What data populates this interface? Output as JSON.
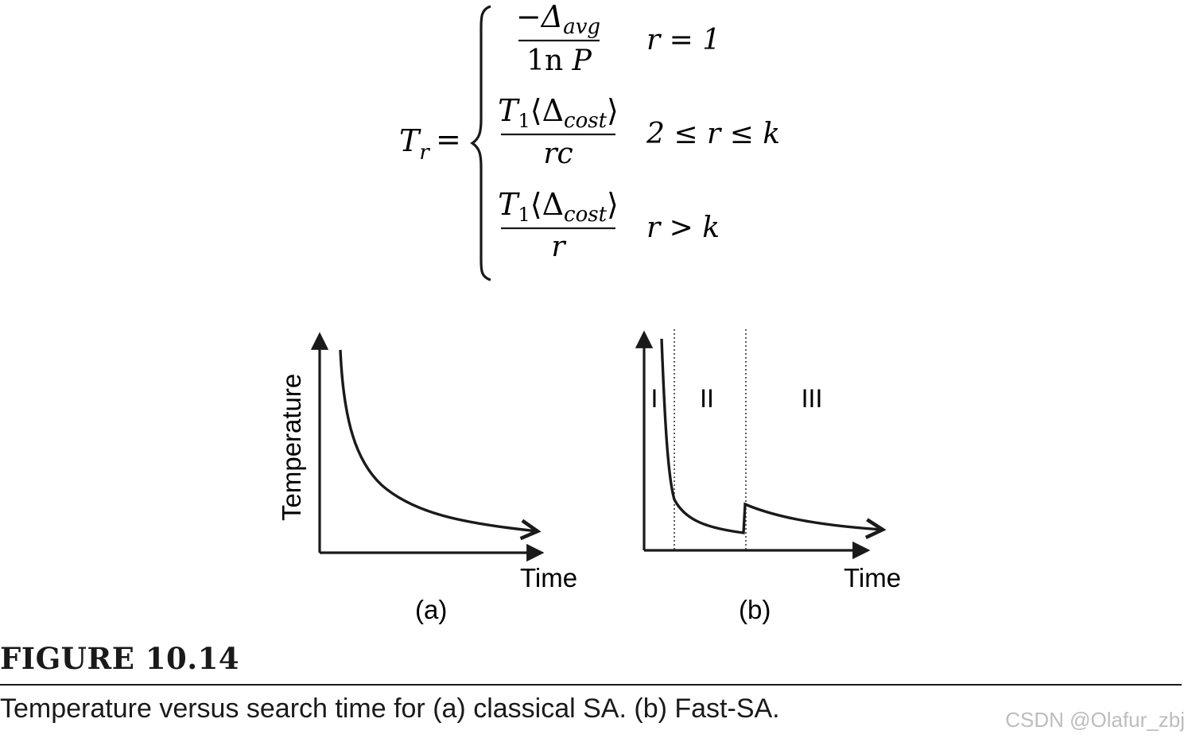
{
  "equation": {
    "lhs": "T",
    "lhs_sub": "r",
    "equals": "=",
    "cases": [
      {
        "num_main": "−Δ",
        "num_sub": "avg",
        "num_tail": "",
        "den_main": "1n ",
        "den_tail": "P",
        "condition": "r = 1"
      },
      {
        "num_main": "T",
        "num_sub1": "1",
        "num_mid": "⟨Δ",
        "num_sub": "cost",
        "num_tail": "⟩",
        "den": "rc",
        "condition": "2 ≤ r ≤ k"
      },
      {
        "num_main": "T",
        "num_sub1": "1",
        "num_mid": "⟨Δ",
        "num_sub": "cost",
        "num_tail": "⟩",
        "den": "r",
        "condition": "r > k"
      }
    ]
  },
  "plots": {
    "a": {
      "ylabel": "Temperature",
      "xlabel": "Time",
      "panel": "(a)"
    },
    "b": {
      "xlabel": "Time",
      "panel": "(b)",
      "regions": [
        "I",
        "II",
        "III"
      ]
    }
  },
  "figure": {
    "label": "FIGURE 10.14",
    "caption": "Temperature versus search time for (a) classical SA. (b) Fast-SA."
  },
  "watermark": "CSDN @Olafur_zbj"
}
